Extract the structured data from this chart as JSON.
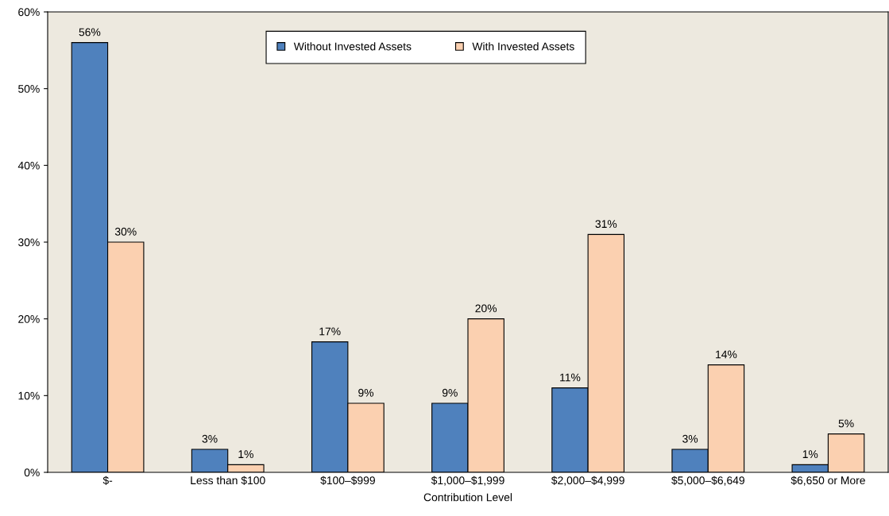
{
  "chart_data": {
    "type": "bar",
    "xlabel": "Contribution Level",
    "categories": [
      "$-",
      "Less than $100",
      "$100–$999",
      "$1,000–$1,999",
      "$2,000–$4,999",
      "$5,000–$6,649",
      "$6,650 or More"
    ],
    "series": [
      {
        "name": "Without Invested Assets",
        "color": "#4f81bd",
        "values": [
          56,
          3,
          17,
          9,
          11,
          3,
          1
        ],
        "value_labels": [
          "56%",
          "3%",
          "17%",
          "9%",
          "11%",
          "3%",
          "1%"
        ]
      },
      {
        "name": "With Invested Assets",
        "color": "#fbd0b0",
        "values": [
          30,
          1,
          9,
          20,
          31,
          14,
          5
        ],
        "value_labels": [
          "30%",
          "1%",
          "9%",
          "20%",
          "31%",
          "14%",
          "5%"
        ]
      }
    ],
    "ylim": [
      0,
      60
    ],
    "yticks": [
      {
        "value": 0,
        "label": "0%"
      },
      {
        "value": 10,
        "label": "10%"
      },
      {
        "value": 20,
        "label": "20%"
      },
      {
        "value": 30,
        "label": "30%"
      },
      {
        "value": 40,
        "label": "40%"
      },
      {
        "value": 50,
        "label": "50%"
      },
      {
        "value": 60,
        "label": "60%"
      }
    ],
    "legend": "top",
    "grid": false
  }
}
